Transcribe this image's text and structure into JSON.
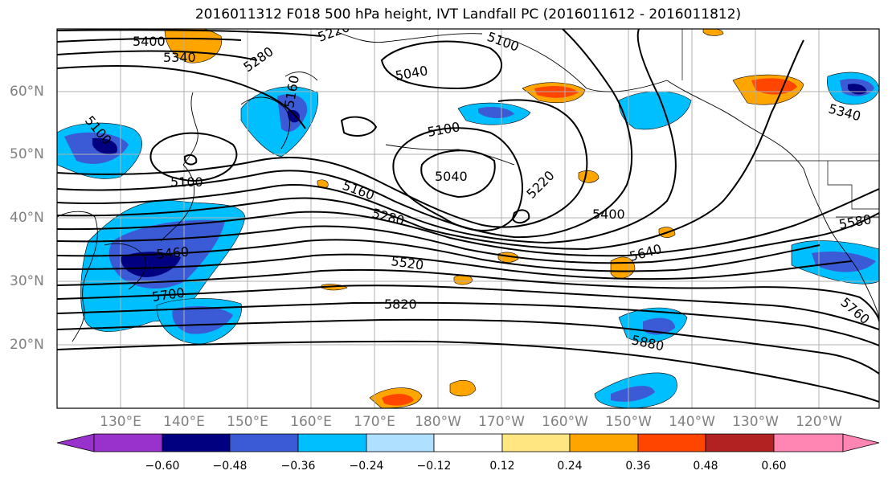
{
  "title": "2016011312 F018 500 hPa height, IVT Landfall PC (2016011612 - 2016011812)",
  "lat_labels": [
    "60°N",
    "50°N",
    "40°N",
    "30°N",
    "20°N"
  ],
  "lon_labels": [
    "130°E",
    "140°E",
    "150°E",
    "160°E",
    "170°E",
    "180°W",
    "170°W",
    "160°W",
    "150°W",
    "140°W",
    "130°W",
    "120°W"
  ],
  "colorbar": {
    "ticks": [
      "−0.60",
      "−0.48",
      "−0.36",
      "−0.24",
      "−0.12",
      "0.12",
      "0.24",
      "0.36",
      "0.48",
      "0.60"
    ],
    "colors": [
      "#9932CC",
      "#000080",
      "#3B5BD6",
      "#00BFFF",
      "#B0E0FF",
      "#FFFFFF",
      "#FFE680",
      "#FFA500",
      "#FF4500",
      "#B22222",
      "#FF85B3"
    ]
  },
  "contour_labels": [
    "5400",
    "5340",
    "5280",
    "5220",
    "5100",
    "5040",
    "5100",
    "5040",
    "5160",
    "5280",
    "5220",
    "5400",
    "5520",
    "5640",
    "5580",
    "5700",
    "5820",
    "5880",
    "5760",
    "5460",
    "5100",
    "5160",
    "5100",
    "5340"
  ]
}
